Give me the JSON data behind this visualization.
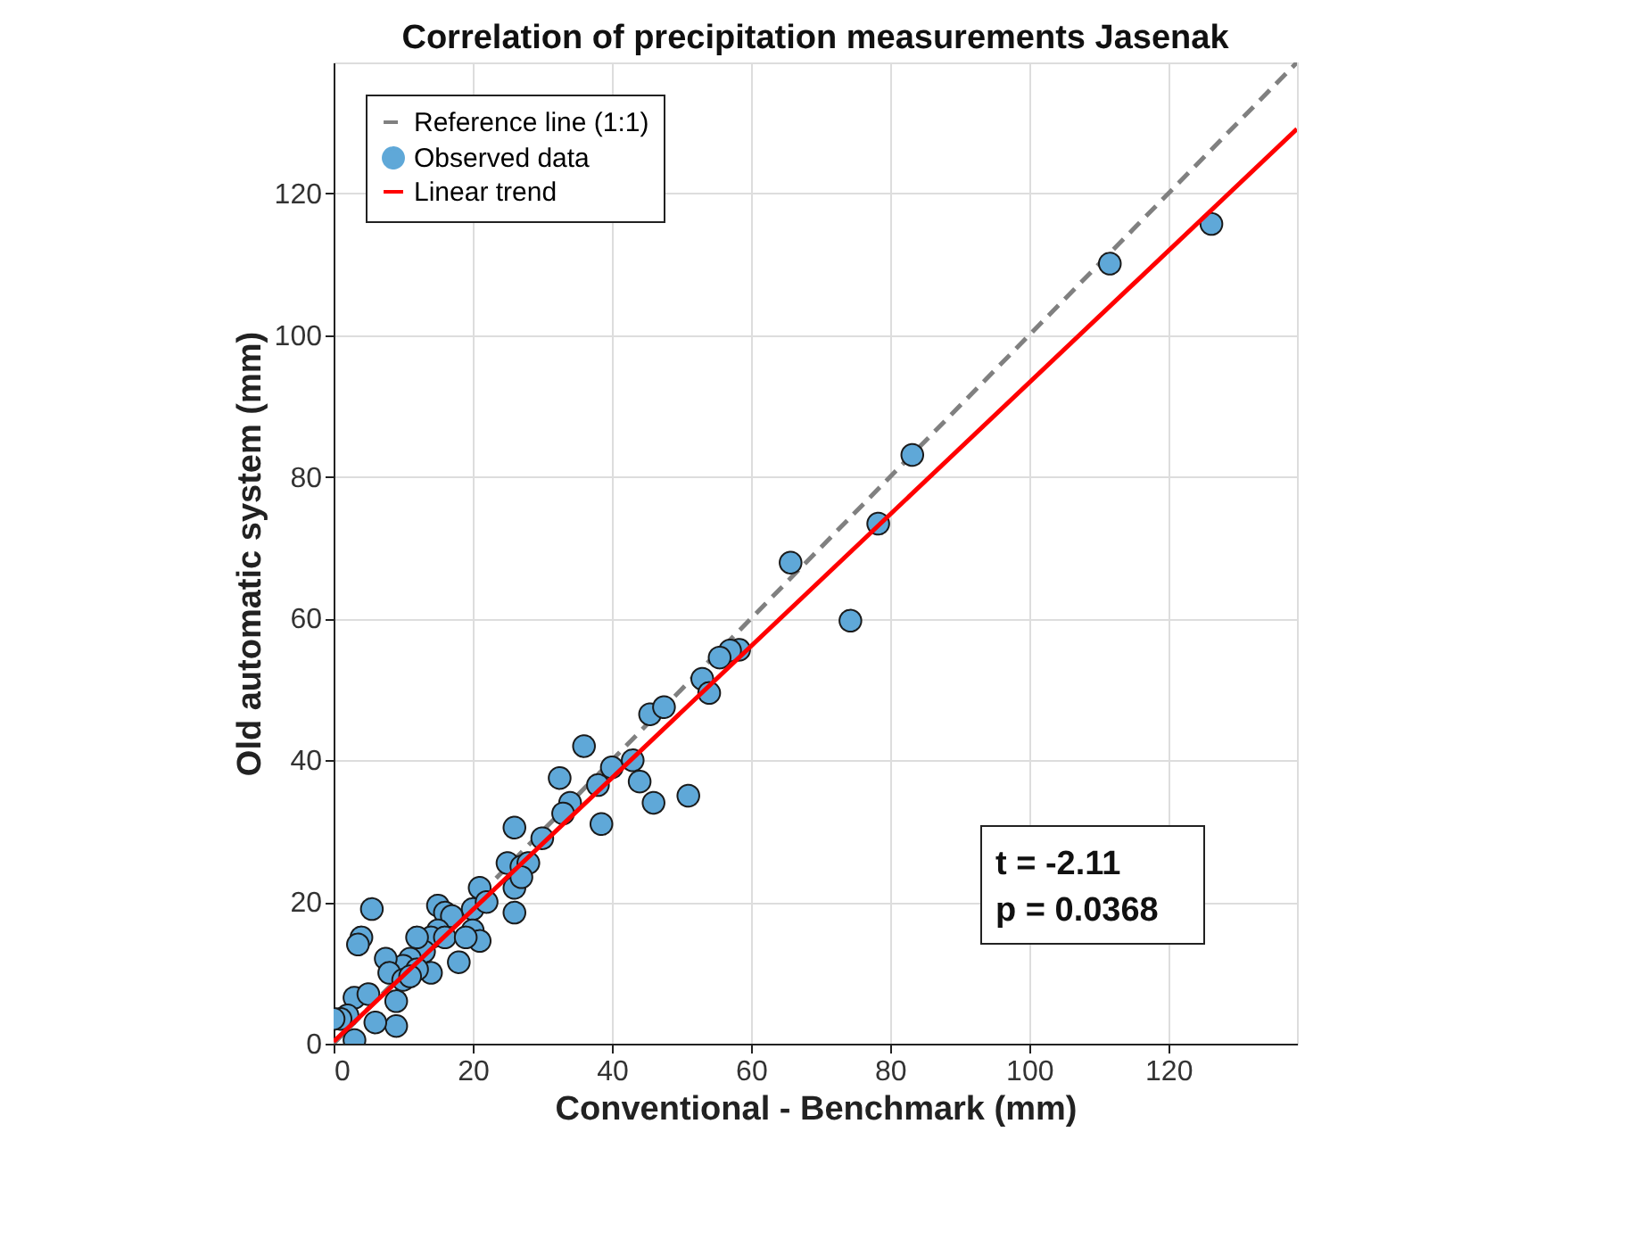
{
  "chart_data": {
    "type": "scatter",
    "title": "Correlation of precipitation measurements Jasenak",
    "xlabel": "Conventional - Benchmark (mm)",
    "ylabel": "Old automatic system (mm)",
    "xlim": [
      0,
      138.5
    ],
    "ylim": [
      0,
      138.5
    ],
    "xticks": [
      0,
      20,
      40,
      60,
      80,
      100,
      120
    ],
    "yticks": [
      0,
      20,
      40,
      60,
      80,
      100,
      120
    ],
    "grid": true,
    "legend": "top left",
    "annotations": [
      "t = -2.11",
      "p = 0.0368"
    ],
    "series": [
      {
        "name": "Reference line (1:1)",
        "type": "line",
        "line_style": "dashed",
        "color": "#808080",
        "x": [
          0,
          138.5
        ],
        "values": [
          0,
          138.5
        ]
      },
      {
        "name": "Observed data",
        "marker": "circle",
        "color": "#5fa8d8",
        "x": [
          126.2,
          111.6,
          83.2,
          78.3,
          65.7,
          74.3,
          58.3,
          57,
          55.5,
          53,
          54,
          45.5,
          47.5,
          51,
          46,
          36,
          43,
          44,
          40,
          38,
          38.5,
          32.5,
          34,
          33,
          30,
          26,
          25,
          27,
          28,
          26,
          27,
          26,
          20,
          21,
          22,
          20,
          21,
          18,
          15,
          16,
          17,
          15,
          14,
          16,
          13,
          12,
          14,
          11,
          10,
          7.5,
          8,
          9,
          9,
          5.5,
          4,
          3.5,
          3,
          2,
          1,
          0,
          3,
          10,
          12,
          5,
          11,
          19,
          6
        ],
        "values": [
          115.7,
          110.1,
          83.1,
          73.4,
          67.9,
          59.7,
          55.6,
          55.5,
          54.5,
          51.5,
          49.5,
          46.5,
          47.5,
          35,
          34,
          42,
          40,
          37,
          39,
          36.5,
          31,
          37.5,
          34,
          32.5,
          29,
          30.5,
          25.5,
          25,
          25.5,
          22,
          23.5,
          18.5,
          19,
          22,
          20,
          16,
          14.5,
          11.5,
          19.5,
          18.5,
          18,
          16,
          15,
          15,
          13,
          15,
          10,
          12,
          11,
          12,
          10,
          6,
          2.5,
          19,
          15,
          14,
          6.5,
          4,
          3.5,
          3.5,
          0.5,
          9,
          10.5,
          7,
          9.5,
          15,
          3
        ]
      },
      {
        "name": "Linear trend",
        "type": "line",
        "line_style": "solid",
        "color": "#ff0000",
        "x": [
          0,
          138.5
        ],
        "values": [
          0.3,
          129.1
        ]
      }
    ]
  }
}
